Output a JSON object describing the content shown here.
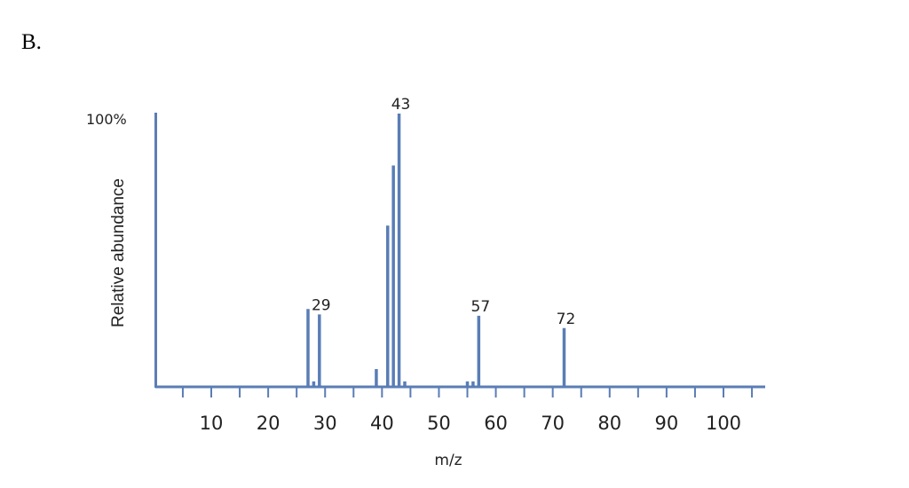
{
  "panel_label": "B.",
  "chart_data": {
    "type": "bar",
    "title": "",
    "xlabel": "m/z",
    "ylabel": "Relative abundance",
    "y_top_label": "100%",
    "xlim": [
      0,
      107
    ],
    "ylim": [
      0,
      100
    ],
    "x_ticks": [
      10,
      20,
      30,
      40,
      50,
      60,
      70,
      80,
      90,
      100
    ],
    "colors": {
      "bars": "#5a7db5",
      "axis": "#5a7db5"
    },
    "peaks": [
      {
        "x": 27,
        "y": 28.5,
        "label": ""
      },
      {
        "x": 28,
        "y": 2,
        "label": ""
      },
      {
        "x": 29,
        "y": 26.5,
        "label": "29"
      },
      {
        "x": 39,
        "y": 6.5,
        "label": ""
      },
      {
        "x": 41,
        "y": 59,
        "label": ""
      },
      {
        "x": 42,
        "y": 81,
        "label": ""
      },
      {
        "x": 43,
        "y": 100,
        "label": "43"
      },
      {
        "x": 44,
        "y": 2,
        "label": ""
      },
      {
        "x": 55,
        "y": 2,
        "label": ""
      },
      {
        "x": 56,
        "y": 2,
        "label": ""
      },
      {
        "x": 57,
        "y": 26,
        "label": "57"
      },
      {
        "x": 72,
        "y": 21.5,
        "label": "72"
      }
    ]
  }
}
